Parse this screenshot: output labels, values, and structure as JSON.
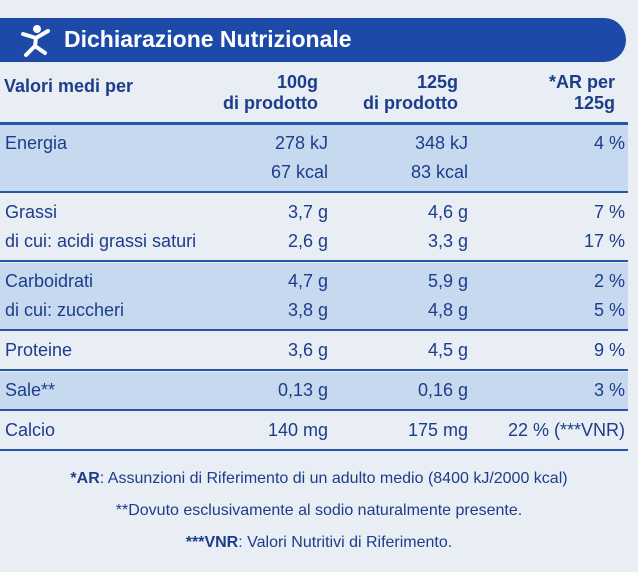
{
  "header": {
    "title": "Dichiarazione Nutrizionale"
  },
  "table": {
    "columns": [
      "Valori medi per",
      [
        "100g",
        "di prodotto"
      ],
      [
        "125g",
        "di prodotto"
      ],
      [
        "*AR per",
        "125g"
      ]
    ],
    "groups": [
      {
        "shaded": true,
        "rows": [
          {
            "label": "Energia",
            "cells": [
              [
                "278 kJ",
                "67 kcal"
              ],
              [
                "348 kJ",
                "83 kcal"
              ],
              [
                "4 %"
              ]
            ]
          }
        ]
      },
      {
        "shaded": false,
        "rows": [
          {
            "label": "Grassi",
            "cells": [
              "3,7 g",
              "4,6 g",
              "7 %"
            ]
          },
          {
            "label": "di cui: acidi grassi saturi",
            "cells": [
              "2,6 g",
              "3,3 g",
              "17 %"
            ]
          }
        ]
      },
      {
        "shaded": true,
        "rows": [
          {
            "label": "Carboidrati",
            "cells": [
              "4,7 g",
              "5,9 g",
              "2 %"
            ]
          },
          {
            "label": "di cui: zuccheri",
            "cells": [
              "3,8 g",
              "4,8 g",
              "5 %"
            ]
          }
        ]
      },
      {
        "shaded": false,
        "rows": [
          {
            "label": "Proteine",
            "cells": [
              "3,6 g",
              "4,5 g",
              "9 %"
            ]
          }
        ]
      },
      {
        "shaded": true,
        "rows": [
          {
            "label": "Sale**",
            "cells": [
              "0,13 g",
              "0,16 g",
              "3 %"
            ]
          }
        ]
      },
      {
        "shaded": false,
        "rows": [
          {
            "label": "Calcio",
            "cells": [
              "140 mg",
              "175 mg",
              "22 % (***VNR)"
            ]
          }
        ]
      }
    ]
  },
  "footnotes": [
    {
      "key": "*AR",
      "text": ": Assunzioni di Riferimento di un adulto medio (8400 kJ/2000 kcal)"
    },
    {
      "key": "",
      "text": "**Dovuto esclusivamente al sodio naturalmente presente."
    },
    {
      "key": "***VNR",
      "text": ": Valori Nutritivi di Riferimento."
    }
  ]
}
